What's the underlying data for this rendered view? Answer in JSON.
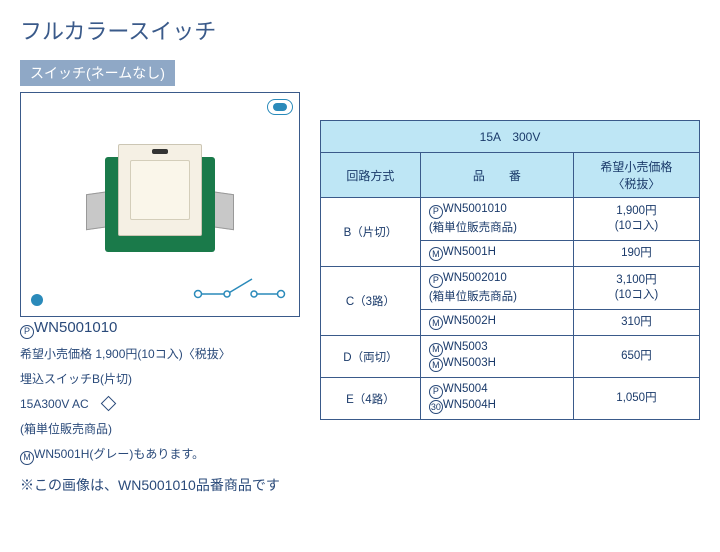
{
  "title": "フルカラースイッチ",
  "section_label": "スイッチ(ネームなし)",
  "product": {
    "code": "WN5001010",
    "price_line": "希望小売価格 1,900円(10コ入)〈税抜〉",
    "desc_line": "埋込スイッチB(片切)",
    "spec_line": "15A300V AC",
    "box_line": "(箱単位販売商品)",
    "gray_line": "WN5001H(グレー)もあります。"
  },
  "note": "※この画像は、WN5001010品番商品です",
  "table": {
    "spec_header": "15A　300V",
    "col1": "回路方式",
    "col2": "品　　番",
    "col3": "希望小売価格\n〈税抜〉",
    "rows": [
      {
        "circuit": "B（片切）",
        "items": [
          {
            "code": "WN5001010",
            "sub": "(箱単位販売商品)",
            "mark": "P",
            "price": "1,900円",
            "price_sub": "(10コ入)"
          },
          {
            "code": "WN5001H",
            "mark": "M",
            "price": "190円"
          }
        ]
      },
      {
        "circuit": "C（3路）",
        "items": [
          {
            "code": "WN5002010",
            "sub": "(箱単位販売商品)",
            "mark": "P",
            "price": "3,100円",
            "price_sub": "(10コ入)"
          },
          {
            "code": "WN5002H",
            "mark": "M",
            "price": "310円"
          }
        ]
      },
      {
        "circuit": "D（両切）",
        "items": [
          {
            "code_lines": [
              "WN5003",
              "WN5003H"
            ],
            "marks": [
              "M",
              "M"
            ],
            "price": "650円"
          }
        ]
      },
      {
        "circuit": "E（4路）",
        "items": [
          {
            "code_lines": [
              "WN5004",
              "WN5004H"
            ],
            "marks": [
              "P",
              "30"
            ],
            "price": "1,050円"
          }
        ]
      }
    ]
  },
  "colors": {
    "title": "#3a5a8a",
    "bar_bg": "#8fa8c6",
    "table_hdr_bg": "#bee6f5",
    "border": "#3a5a8a",
    "text": "#2a4a7a",
    "dot": "#2a8aba",
    "switch_green": "#1a7a4a",
    "switch_face": "#f5f0e4"
  }
}
